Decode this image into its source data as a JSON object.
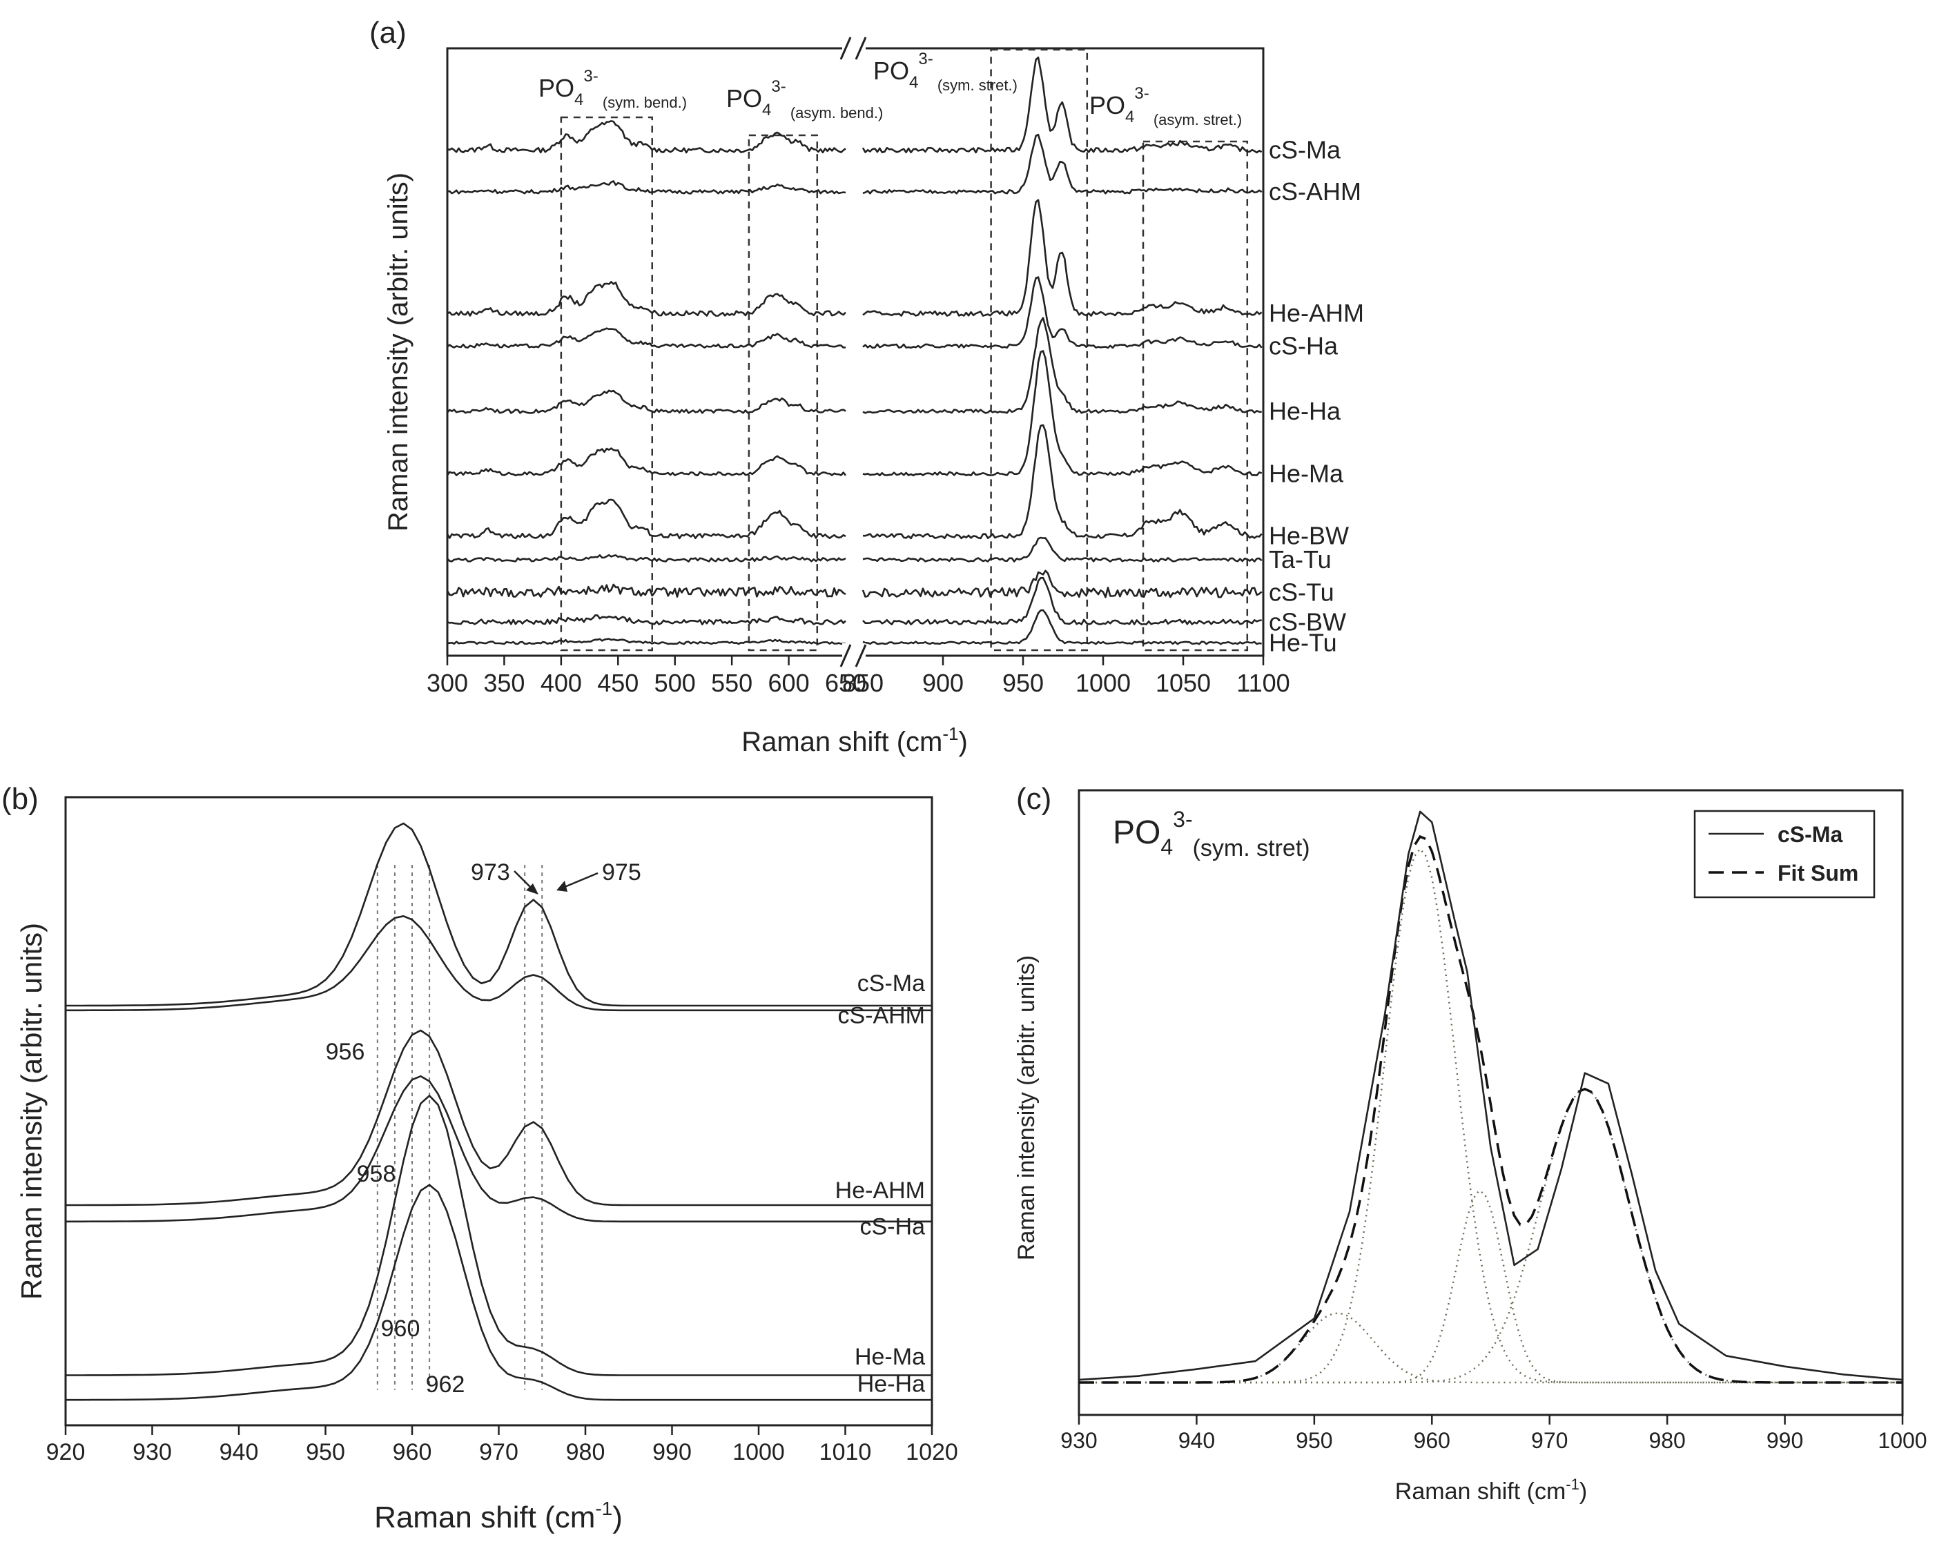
{
  "chart_data": [
    {
      "panel": "(a)",
      "type": "line",
      "xlabel": "Raman shift (cm",
      "xlabel_sup": "-1",
      "xlabel_end": ")",
      "ylabel": "Raman intensity (arbitr. units)",
      "x_segments": [
        [
          300,
          650
        ],
        [
          850,
          1100
        ]
      ],
      "xticks": [
        "300",
        "350",
        "400",
        "450",
        "500",
        "550",
        "600",
        "650",
        "850",
        "900",
        "950",
        "1000",
        "1050",
        "1100"
      ],
      "regions": [
        {
          "label": "PO",
          "sub": "4",
          "sup": "3-",
          "note": "(sym. bend.)",
          "xrange": [
            400,
            480
          ]
        },
        {
          "label": "PO",
          "sub": "4",
          "sup": "3-",
          "note": "(asym. bend.)",
          "xrange": [
            565,
            625
          ]
        },
        {
          "label": "PO",
          "sub": "4",
          "sup": "3-",
          "note": "(sym. stret.)",
          "xrange": [
            930,
            990
          ]
        },
        {
          "label": "PO",
          "sub": "4",
          "sup": "3-",
          "note": "(asym. stret.)",
          "xrange": [
            1025,
            1090
          ]
        }
      ],
      "series": [
        {
          "name": "cS-Ma",
          "offset": 0.84,
          "bend": 0.05,
          "sym": 0.155,
          "split": 1,
          "shoulder": 0.5,
          "asym": 0.012,
          "noise": 0.004
        },
        {
          "name": "cS-AHM",
          "offset": 0.77,
          "bend": 0.016,
          "sym": 0.095,
          "split": 1,
          "shoulder": 0.55,
          "asym": 0.005,
          "noise": 0.003
        },
        {
          "name": "He-AHM",
          "offset": 0.565,
          "bend": 0.055,
          "sym": 0.19,
          "split": 1,
          "shoulder": 0.55,
          "asym": 0.018,
          "noise": 0.004
        },
        {
          "name": "cS-Ha",
          "offset": 0.51,
          "bend": 0.03,
          "sym": 0.115,
          "split": 1,
          "shoulder": 0.25,
          "asym": 0.012,
          "noise": 0.003
        },
        {
          "name": "He-Ha",
          "offset": 0.4,
          "bend": 0.035,
          "sym": 0.155,
          "split": 0,
          "shoulder": 0.15,
          "asym": 0.015,
          "noise": 0.003
        },
        {
          "name": "He-Ma",
          "offset": 0.295,
          "bend": 0.045,
          "sym": 0.21,
          "split": 0,
          "shoulder": 0.1,
          "asym": 0.02,
          "noise": 0.003
        },
        {
          "name": "He-BW",
          "offset": 0.19,
          "bend": 0.065,
          "sym": 0.19,
          "split": 0,
          "shoulder": 0.1,
          "asym": 0.04,
          "noise": 0.004
        },
        {
          "name": "Ta-Tu",
          "offset": 0.15,
          "bend": 0.006,
          "sym": 0.038,
          "split": 0,
          "shoulder": 0.0,
          "asym": 0.0,
          "noise": 0.003
        },
        {
          "name": "cS-Tu",
          "offset": 0.095,
          "bend": 0.006,
          "sym": 0.032,
          "split": 0,
          "shoulder": 0.0,
          "asym": 0.0,
          "noise": 0.008
        },
        {
          "name": "cS-BW",
          "offset": 0.045,
          "bend": 0.01,
          "sym": 0.075,
          "split": 0,
          "shoulder": 0.0,
          "asym": 0.0,
          "noise": 0.004
        },
        {
          "name": "He-Tu",
          "offset": 0.01,
          "bend": 0.006,
          "sym": 0.055,
          "split": 0,
          "shoulder": 0.0,
          "asym": 0.0,
          "noise": 0.002
        }
      ],
      "xlim": [
        300,
        1100
      ],
      "ylim": [
        0,
        1
      ]
    },
    {
      "panel": "(b)",
      "type": "line",
      "xlabel": "Raman shift (cm",
      "xlabel_sup": "-1",
      "xlabel_end": ")",
      "ylabel": "Raman intensity (arbitr. units)",
      "xlim": [
        920,
        1020
      ],
      "ylim": [
        0,
        1
      ],
      "xticks": [
        920,
        930,
        940,
        950,
        960,
        970,
        980,
        990,
        1000,
        1010,
        1020
      ],
      "guides": [
        956,
        958,
        960,
        962,
        973,
        975
      ],
      "annotations": [
        "956",
        "958",
        "960",
        "962",
        "973",
        "975"
      ],
      "series": [
        {
          "name": "cS-Ma",
          "base": 0.68,
          "c1": 959,
          "a1": 0.3,
          "c2": 974,
          "a2": 0.18
        },
        {
          "name": "cS-AHM",
          "base": 0.672,
          "c1": 959,
          "a1": 0.15,
          "c2": 974,
          "a2": 0.06
        },
        {
          "name": "He-AHM",
          "base": 0.34,
          "c1": 961,
          "a1": 0.29,
          "c2": 974,
          "a2": 0.14
        },
        {
          "name": "cS-Ha",
          "base": 0.312,
          "c1": 961,
          "a1": 0.24,
          "c2": 974,
          "a2": 0.04
        },
        {
          "name": "He-Ma",
          "base": 0.05,
          "c1": 962,
          "a1": 0.47,
          "c2": 974,
          "a2": 0.04
        },
        {
          "name": "He-Ha",
          "base": 0.008,
          "c1": 962,
          "a1": 0.36,
          "c2": 974,
          "a2": 0.03
        }
      ]
    },
    {
      "panel": "(c)",
      "type": "line",
      "title": "PO",
      "title_sub": "4",
      "title_sup": "3-",
      "title_note": "(sym. stret)",
      "xlabel": "Raman shift (cm",
      "xlabel_sup": "-1",
      "xlabel_end": ")",
      "ylabel": "Raman intensity (arbitr. units)",
      "xlim": [
        930,
        1000
      ],
      "ylim": [
        0,
        1.1
      ],
      "xticks": [
        930,
        940,
        950,
        960,
        970,
        980,
        990,
        1000
      ],
      "legend": [
        {
          "label": "cS-Ma",
          "style": "solid"
        },
        {
          "label": "Fit Sum",
          "style": "dashed"
        }
      ],
      "legend_position": "top-right",
      "components": [
        {
          "center": 952.0,
          "amplitude": 0.13,
          "sigma": 3.0
        },
        {
          "center": 959.0,
          "amplitude": 1.0,
          "sigma": 3.0
        },
        {
          "center": 964.1,
          "amplitude": 0.36,
          "sigma": 2.0
        },
        {
          "center": 973.0,
          "amplitude": 0.55,
          "sigma": 3.8
        }
      ],
      "measured": {
        "x": [
          930,
          935,
          940,
          945,
          950,
          953,
          956,
          958,
          959,
          960,
          962,
          963,
          965,
          967,
          969,
          971,
          973,
          975,
          977,
          979,
          981,
          985,
          990,
          995,
          1000
        ],
        "y": [
          0.005,
          0.012,
          0.025,
          0.04,
          0.12,
          0.32,
          0.69,
          0.99,
          1.07,
          1.05,
          0.86,
          0.77,
          0.44,
          0.22,
          0.25,
          0.4,
          0.58,
          0.56,
          0.39,
          0.21,
          0.11,
          0.05,
          0.03,
          0.015,
          0.005
        ]
      }
    }
  ]
}
